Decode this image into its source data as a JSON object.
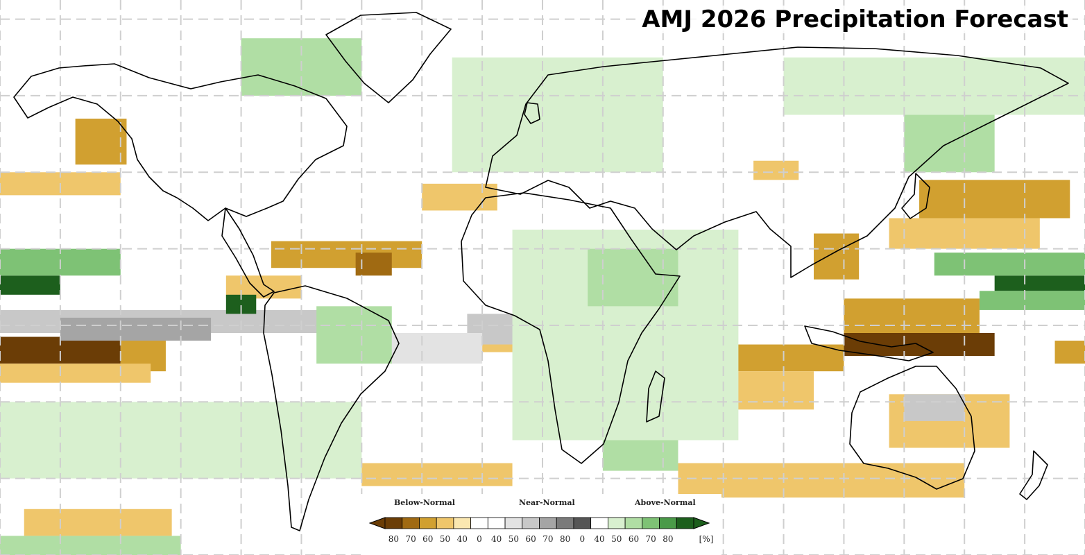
{
  "title": "AMJ 2026 Precipitation Forecast",
  "legend": {
    "categories": [
      "Below-Normal",
      "Near-Normal",
      "Above-Normal"
    ],
    "ticks": [
      "80",
      "70",
      "60",
      "50",
      "40",
      "0",
      "40",
      "50",
      "60",
      "70",
      "80",
      "0",
      "40",
      "50",
      "60",
      "70",
      "80"
    ],
    "unit": "[%]",
    "colors": [
      "#6b3d06",
      "#a06a12",
      "#d1a030",
      "#efc66b",
      "#fae7b0",
      "#ffffff",
      "#ffffff",
      "#e3e3e3",
      "#c8c8c8",
      "#a5a5a5",
      "#7a7a7a",
      "#555555",
      "#ffffff",
      "#d8f0cf",
      "#b0dea4",
      "#7ec275",
      "#4a9a48",
      "#1d5f1d"
    ]
  },
  "map_data": {
    "projection": "equirectangular",
    "lon_range": [
      -180,
      180
    ],
    "lat_range": [
      -60,
      85
    ],
    "gridlines": true,
    "categories": {
      "B": "below-normal",
      "N": "near-normal",
      "A": "above-normal"
    },
    "regions": [
      {
        "cat": "B",
        "level": 3,
        "lon": [
          -155,
          -138
        ],
        "lat": [
          42,
          54
        ]
      },
      {
        "cat": "B",
        "level": 2,
        "lon": [
          -180,
          -140
        ],
        "lat": [
          34,
          40
        ]
      },
      {
        "cat": "B",
        "level": 2,
        "lon": [
          -40,
          -15
        ],
        "lat": [
          30,
          37
        ]
      },
      {
        "cat": "B",
        "level": 3,
        "lon": [
          -90,
          -40
        ],
        "lat": [
          15,
          22
        ]
      },
      {
        "cat": "B",
        "level": 4,
        "lon": [
          -62,
          -50
        ],
        "lat": [
          13,
          19
        ]
      },
      {
        "cat": "B",
        "level": 2,
        "lon": [
          -105,
          -80
        ],
        "lat": [
          7,
          13
        ]
      },
      {
        "cat": "B",
        "level": 2,
        "lon": [
          -20,
          2
        ],
        "lat": [
          -7,
          2
        ]
      },
      {
        "cat": "B",
        "level": 5,
        "lon": [
          -180,
          -140
        ],
        "lat": [
          -10,
          -3
        ]
      },
      {
        "cat": "B",
        "level": 3,
        "lon": [
          -140,
          -125
        ],
        "lat": [
          -12,
          -3
        ]
      },
      {
        "cat": "B",
        "level": 2,
        "lon": [
          -180,
          -130
        ],
        "lat": [
          -15,
          -10
        ]
      },
      {
        "cat": "B",
        "level": 2,
        "lon": [
          -60,
          -10
        ],
        "lat": [
          -42,
          -36
        ]
      },
      {
        "cat": "B",
        "level": 2,
        "lon": [
          -172,
          -123
        ],
        "lat": [
          -55,
          -48
        ]
      },
      {
        "cat": "B",
        "level": 2,
        "lon": [
          70,
          85
        ],
        "lat": [
          38,
          43
        ]
      },
      {
        "cat": "B",
        "level": 3,
        "lon": [
          125,
          175
        ],
        "lat": [
          28,
          38
        ]
      },
      {
        "cat": "B",
        "level": 2,
        "lon": [
          115,
          165
        ],
        "lat": [
          20,
          28
        ]
      },
      {
        "cat": "B",
        "level": 3,
        "lon": [
          90,
          105
        ],
        "lat": [
          12,
          24
        ]
      },
      {
        "cat": "B",
        "level": 3,
        "lon": [
          100,
          145
        ],
        "lat": [
          -3,
          7
        ]
      },
      {
        "cat": "B",
        "level": 5,
        "lon": [
          100,
          150
        ],
        "lat": [
          -8,
          -2
        ]
      },
      {
        "cat": "B",
        "level": 3,
        "lon": [
          60,
          100
        ],
        "lat": [
          -12,
          -5
        ]
      },
      {
        "cat": "B",
        "level": 2,
        "lon": [
          45,
          90
        ],
        "lat": [
          -22,
          -12
        ]
      },
      {
        "cat": "B",
        "level": 2,
        "lon": [
          115,
          155
        ],
        "lat": [
          -32,
          -18
        ]
      },
      {
        "cat": "B",
        "level": 2,
        "lon": [
          45,
          140
        ],
        "lat": [
          -45,
          -36
        ]
      },
      {
        "cat": "B",
        "level": 3,
        "lon": [
          170,
          180
        ],
        "lat": [
          -10,
          -4
        ]
      },
      {
        "cat": "N",
        "level": 2,
        "lon": [
          -180,
          -60
        ],
        "lat": [
          -2,
          4
        ]
      },
      {
        "cat": "N",
        "level": 3,
        "lon": [
          -160,
          -110
        ],
        "lat": [
          -4,
          2
        ]
      },
      {
        "cat": "N",
        "level": 2,
        "lon": [
          -25,
          5
        ],
        "lat": [
          -5,
          3
        ]
      },
      {
        "cat": "N",
        "level": 2,
        "lon": [
          120,
          140
        ],
        "lat": [
          -25,
          -18
        ]
      },
      {
        "cat": "N",
        "level": 1,
        "lon": [
          -60,
          -20
        ],
        "lat": [
          -10,
          -2
        ]
      },
      {
        "cat": "A",
        "level": 5,
        "lon": [
          -180,
          -160
        ],
        "lat": [
          8,
          13
        ]
      },
      {
        "cat": "A",
        "level": 3,
        "lon": [
          -180,
          -140
        ],
        "lat": [
          13,
          20
        ]
      },
      {
        "cat": "A",
        "level": 5,
        "lon": [
          -105,
          -95
        ],
        "lat": [
          3,
          8
        ]
      },
      {
        "cat": "A",
        "level": 5,
        "lon": [
          150,
          180
        ],
        "lat": [
          9,
          13
        ]
      },
      {
        "cat": "A",
        "level": 3,
        "lon": [
          130,
          180
        ],
        "lat": [
          13,
          19
        ]
      },
      {
        "cat": "A",
        "level": 3,
        "lon": [
          145,
          180
        ],
        "lat": [
          4,
          9
        ]
      },
      {
        "cat": "A",
        "level": 1,
        "lon": [
          -10,
          65
        ],
        "lat": [
          -30,
          25
        ]
      },
      {
        "cat": "A",
        "level": 2,
        "lon": [
          15,
          45
        ],
        "lat": [
          5,
          20
        ]
      },
      {
        "cat": "A",
        "level": 2,
        "lon": [
          -75,
          -50
        ],
        "lat": [
          -10,
          5
        ]
      },
      {
        "cat": "A",
        "level": 1,
        "lon": [
          -30,
          40
        ],
        "lat": [
          40,
          70
        ]
      },
      {
        "cat": "A",
        "level": 2,
        "lon": [
          120,
          150
        ],
        "lat": [
          40,
          55
        ]
      },
      {
        "cat": "A",
        "level": 1,
        "lon": [
          -180,
          -60
        ],
        "lat": [
          -40,
          -20
        ]
      },
      {
        "cat": "A",
        "level": 2,
        "lon": [
          20,
          45
        ],
        "lat": [
          -38,
          -30
        ]
      },
      {
        "cat": "A",
        "level": 2,
        "lon": [
          -100,
          -60
        ],
        "lat": [
          60,
          75
        ]
      },
      {
        "cat": "A",
        "level": 2,
        "lon": [
          -180,
          -120
        ],
        "lat": [
          -60,
          -55
        ]
      },
      {
        "cat": "A",
        "level": 1,
        "lon": [
          80,
          180
        ],
        "lat": [
          55,
          70
        ]
      }
    ]
  }
}
